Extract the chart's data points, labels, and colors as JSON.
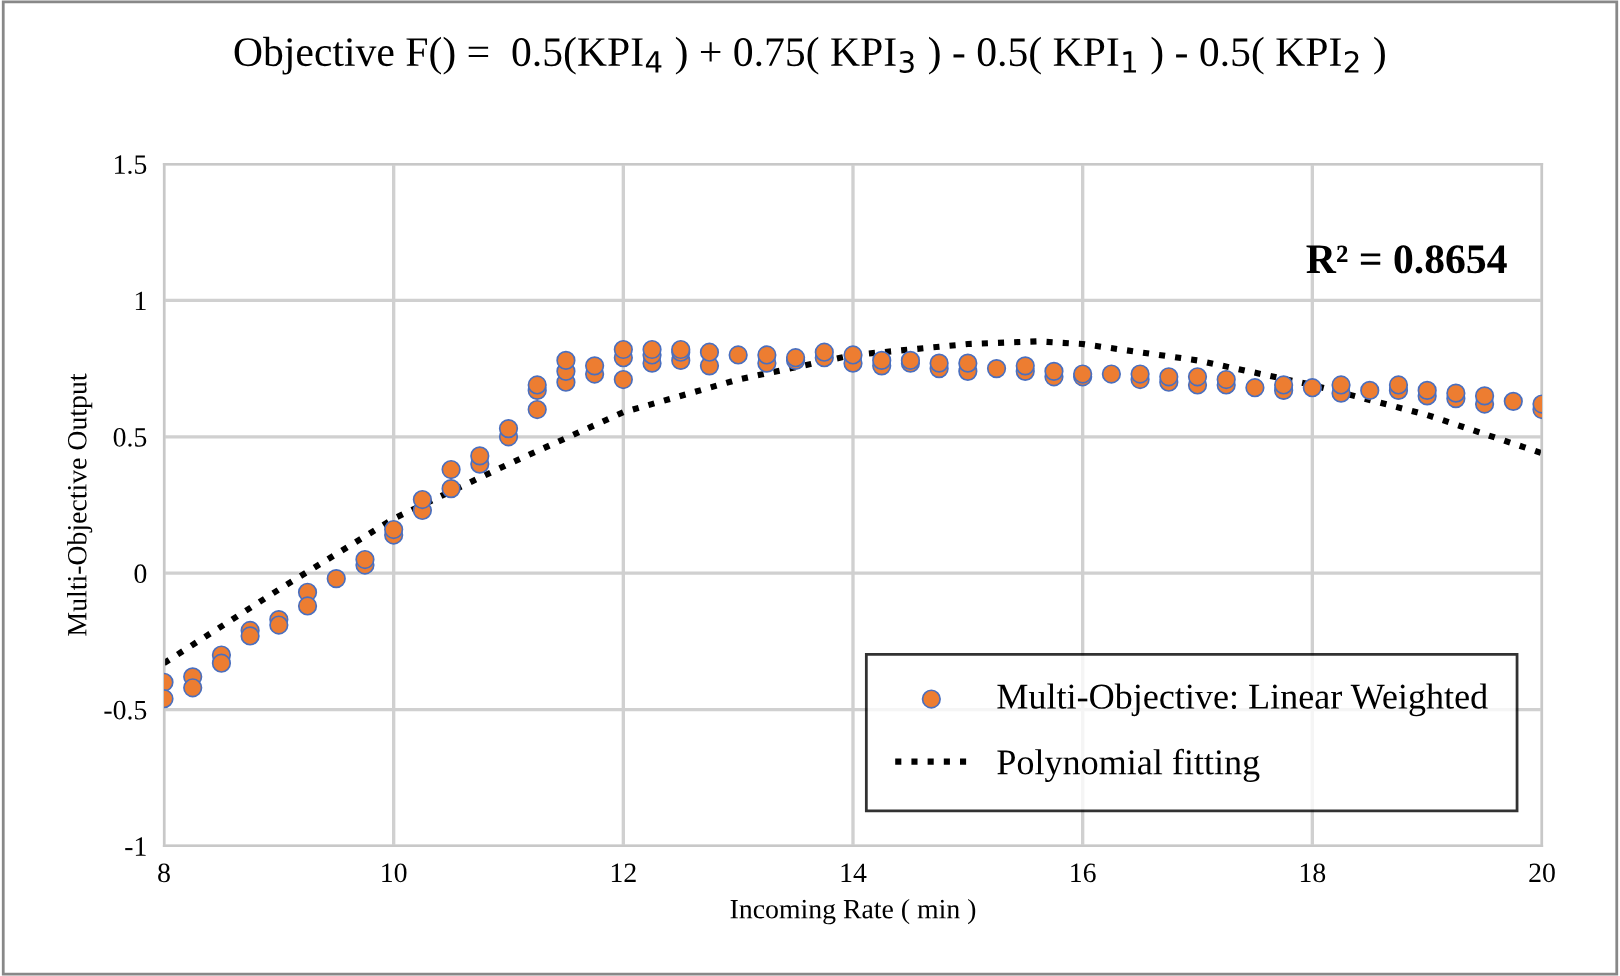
{
  "chart_data": {
    "type": "scatter",
    "title": "Objective F() =  0.5(KPI$_{4}$ ) + 0.75( KPI$_{3}$ ) - 0.5( KPI$_{1}$ ) - 0.5( KPI$_{2}$ )",
    "xlabel": "Incoming Rate ( min )",
    "ylabel": "Multi-Objective Output",
    "annotations": [
      "R² = 0.8654"
    ],
    "xlim": [
      8,
      20
    ],
    "xticks": [
      8,
      10,
      12,
      14,
      16,
      18,
      20
    ],
    "ylim": [
      -1,
      1.5
    ],
    "yticks": [
      -1,
      -0.5,
      0,
      0.5,
      1,
      1.5
    ],
    "grid": true,
    "legend": "bottom right",
    "series": [
      {
        "name": "Multi-Objective: Linear Weighted",
        "marker": "circle",
        "color": "#ed7d31",
        "x": [
          8,
          8,
          8.25,
          8.25,
          8.5,
          8.5,
          8.75,
          8.75,
          9,
          9,
          9.25,
          9.25,
          9.5,
          9.75,
          9.75,
          10,
          10,
          10.25,
          10.25,
          10.5,
          10.5,
          10.75,
          10.75,
          11,
          11,
          11.25,
          11.25,
          11.25,
          11.5,
          11.5,
          11.5,
          11.75,
          11.75,
          12,
          12,
          12,
          12.25,
          12.25,
          12.25,
          12.5,
          12.5,
          12.5,
          12.75,
          12.75,
          13,
          13.25,
          13.25,
          13.5,
          13.5,
          13.75,
          13.75,
          14,
          14,
          14.25,
          14.25,
          14.5,
          14.5,
          14.75,
          14.75,
          15,
          15,
          15.25,
          15.5,
          15.5,
          15.75,
          15.75,
          16,
          16,
          16.25,
          16.5,
          16.5,
          16.75,
          16.75,
          17,
          17,
          17.25,
          17.25,
          17.5,
          17.75,
          17.75,
          18,
          18.25,
          18.25,
          18.5,
          18.75,
          18.75,
          19,
          19,
          19.25,
          19.25,
          19.5,
          19.5,
          19.75,
          20,
          20
        ],
        "values": [
          -0.4,
          -0.46,
          -0.38,
          -0.42,
          -0.3,
          -0.33,
          -0.21,
          -0.23,
          -0.17,
          -0.19,
          -0.07,
          -0.12,
          -0.02,
          0.03,
          0.05,
          0.14,
          0.16,
          0.23,
          0.27,
          0.31,
          0.38,
          0.4,
          0.43,
          0.5,
          0.53,
          0.6,
          0.67,
          0.69,
          0.7,
          0.74,
          0.78,
          0.73,
          0.76,
          0.71,
          0.79,
          0.82,
          0.77,
          0.8,
          0.82,
          0.78,
          0.81,
          0.82,
          0.76,
          0.81,
          0.8,
          0.77,
          0.8,
          0.78,
          0.79,
          0.79,
          0.81,
          0.77,
          0.8,
          0.76,
          0.78,
          0.77,
          0.78,
          0.75,
          0.77,
          0.74,
          0.77,
          0.75,
          0.74,
          0.76,
          0.72,
          0.74,
          0.72,
          0.73,
          0.73,
          0.71,
          0.73,
          0.7,
          0.72,
          0.69,
          0.72,
          0.69,
          0.71,
          0.68,
          0.67,
          0.69,
          0.68,
          0.66,
          0.69,
          0.67,
          0.67,
          0.69,
          0.65,
          0.67,
          0.64,
          0.66,
          0.62,
          0.65,
          0.63,
          0.6,
          0.62
        ]
      },
      {
        "name": "Polynomial fitting",
        "type": "line",
        "marker": "none",
        "line_style": "dotted",
        "color": "#000000",
        "x": [
          8,
          9,
          10,
          11,
          12,
          13,
          14,
          15,
          15.6,
          16,
          17,
          18,
          19,
          20
        ],
        "values": [
          -0.33,
          -0.06,
          0.2,
          0.4,
          0.59,
          0.71,
          0.8,
          0.84,
          0.85,
          0.84,
          0.78,
          0.69,
          0.58,
          0.44
        ]
      }
    ]
  }
}
